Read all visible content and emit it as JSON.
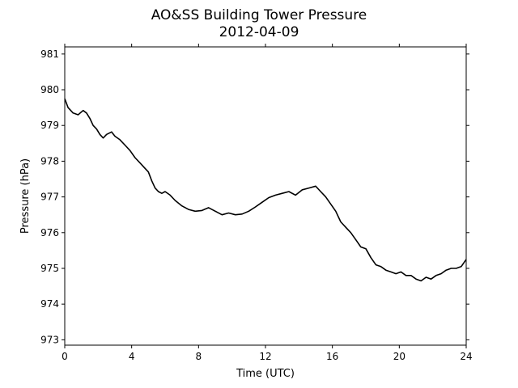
{
  "chart_data": {
    "type": "line",
    "title": "AO&SS Building Tower Pressure",
    "subtitle": "2012-04-09",
    "xlabel": "Time (UTC)",
    "ylabel": "Pressure (hPa)",
    "xlim": [
      0,
      24
    ],
    "ylim": [
      972.85,
      981.2
    ],
    "xticks": [
      0,
      4,
      8,
      12,
      16,
      20,
      24
    ],
    "yticks": [
      973,
      974,
      975,
      976,
      977,
      978,
      979,
      980,
      981
    ],
    "grid": false,
    "line_color": "#000000",
    "series": [
      {
        "x": [
          0,
          0.2,
          0.5,
          0.8,
          1.1,
          1.3,
          1.5,
          1.7,
          1.9,
          2.1,
          2.3,
          2.5,
          2.8,
          3.0,
          3.3,
          3.6,
          3.9,
          4.2,
          4.5,
          4.8,
          5.0,
          5.2,
          5.4,
          5.6,
          5.8,
          6.0,
          6.3,
          6.6,
          7.0,
          7.4,
          7.8,
          8.2,
          8.6,
          9.0,
          9.4,
          9.8,
          10.2,
          10.6,
          11.0,
          11.4,
          11.8,
          12.2,
          12.6,
          13.0,
          13.4,
          13.8,
          14.2,
          14.6,
          15.0,
          15.3,
          15.6,
          15.9,
          16.2,
          16.5,
          16.8,
          17.1,
          17.4,
          17.7,
          18.0,
          18.3,
          18.6,
          18.9,
          19.2,
          19.5,
          19.8,
          20.1,
          20.4,
          20.7,
          21.0,
          21.3,
          21.6,
          21.9,
          22.2,
          22.5,
          22.8,
          23.1,
          23.4,
          23.7,
          24.0
        ],
        "values": [
          979.75,
          979.5,
          979.35,
          979.3,
          979.42,
          979.35,
          979.2,
          979.0,
          978.9,
          978.75,
          978.65,
          978.75,
          978.82,
          978.7,
          978.6,
          978.45,
          978.3,
          978.1,
          977.95,
          977.8,
          977.7,
          977.45,
          977.25,
          977.15,
          977.1,
          977.15,
          977.05,
          976.9,
          976.75,
          976.65,
          976.6,
          976.62,
          976.7,
          976.6,
          976.5,
          976.55,
          976.5,
          976.52,
          976.6,
          976.72,
          976.85,
          976.98,
          977.05,
          977.1,
          977.15,
          977.05,
          977.2,
          977.25,
          977.3,
          977.15,
          977.0,
          976.8,
          976.6,
          976.3,
          976.15,
          976.0,
          975.8,
          975.6,
          975.55,
          975.3,
          975.1,
          975.05,
          974.95,
          974.9,
          974.85,
          974.9,
          974.8,
          974.8,
          974.7,
          974.65,
          974.75,
          974.7,
          974.8,
          974.85,
          974.95,
          975.0,
          975.0,
          975.05,
          975.25
        ]
      }
    ]
  }
}
